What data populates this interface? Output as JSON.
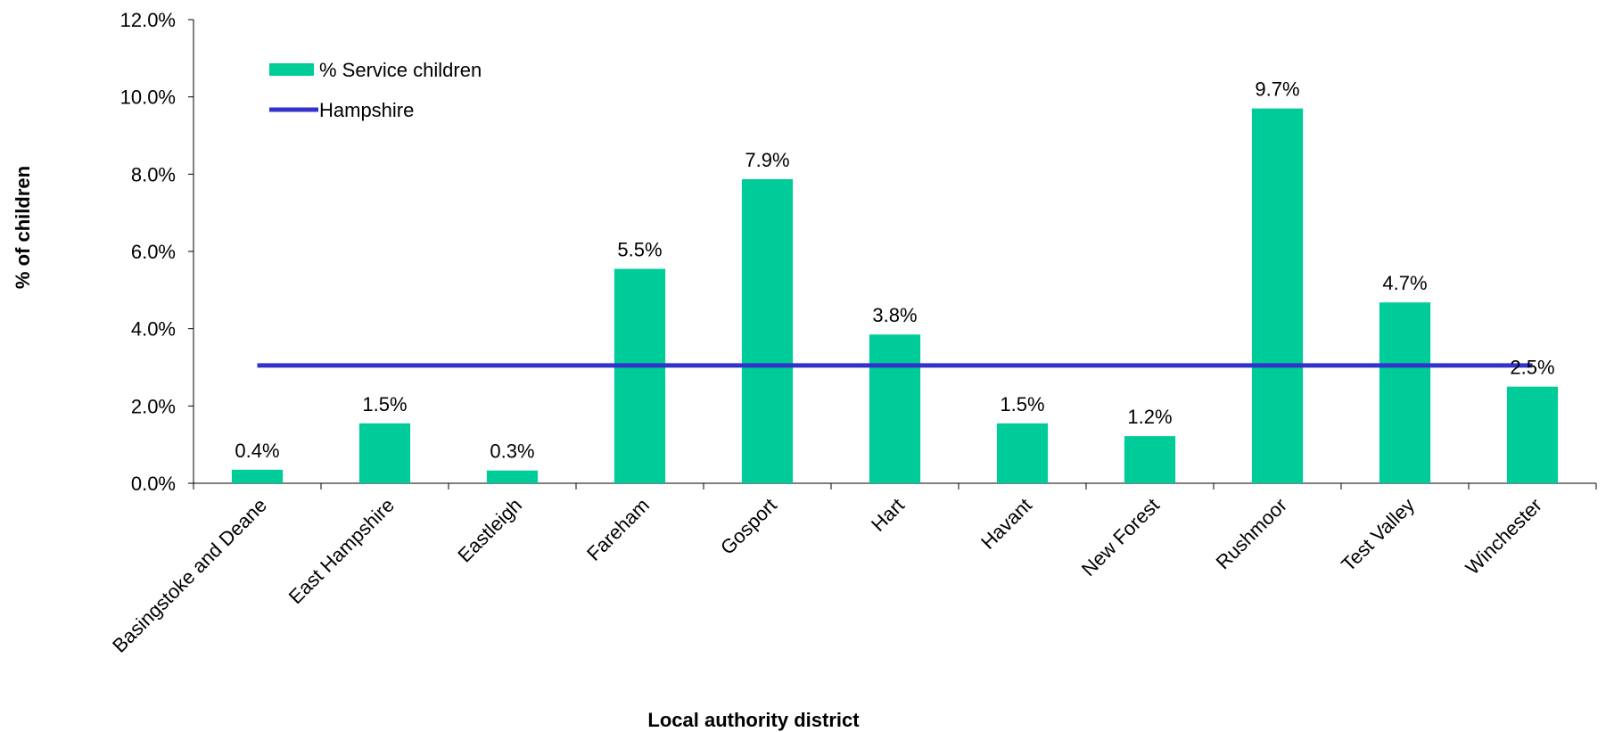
{
  "chart_data": {
    "type": "bar",
    "xlabel": "Local authority district",
    "ylabel": "% of children",
    "ylim": [
      0,
      12
    ],
    "yticks": [
      0,
      2,
      4,
      6,
      8,
      10,
      12
    ],
    "ytick_labels": [
      "0.0%",
      "2.0%",
      "4.0%",
      "6.0%",
      "8.0%",
      "10.0%",
      "12.0%"
    ],
    "categories": [
      "Basingstoke and Deane",
      "East Hampshire",
      "Eastleigh",
      "Fareham",
      "Gosport",
      "Hart",
      "Havant",
      "New Forest",
      "Rushmoor",
      "Test Valley",
      "Winchester"
    ],
    "series": [
      {
        "name": "% Service children",
        "type": "bar",
        "color": "#00CC99",
        "values": [
          0.35,
          1.55,
          0.33,
          5.55,
          7.87,
          3.85,
          1.55,
          1.22,
          9.7,
          4.68,
          2.5
        ],
        "labels": [
          "0.4%",
          "1.5%",
          "0.3%",
          "5.5%",
          "7.9%",
          "3.8%",
          "1.5%",
          "1.2%",
          "9.7%",
          "4.7%",
          "2.5%"
        ]
      },
      {
        "name": "Hampshire",
        "type": "line",
        "color": "#3333CC",
        "values": [
          3.05,
          3.05,
          3.05,
          3.05,
          3.05,
          3.05,
          3.05,
          3.05,
          3.05,
          3.05,
          3.05
        ]
      }
    ],
    "grid": false,
    "legend_position": "top-left"
  }
}
